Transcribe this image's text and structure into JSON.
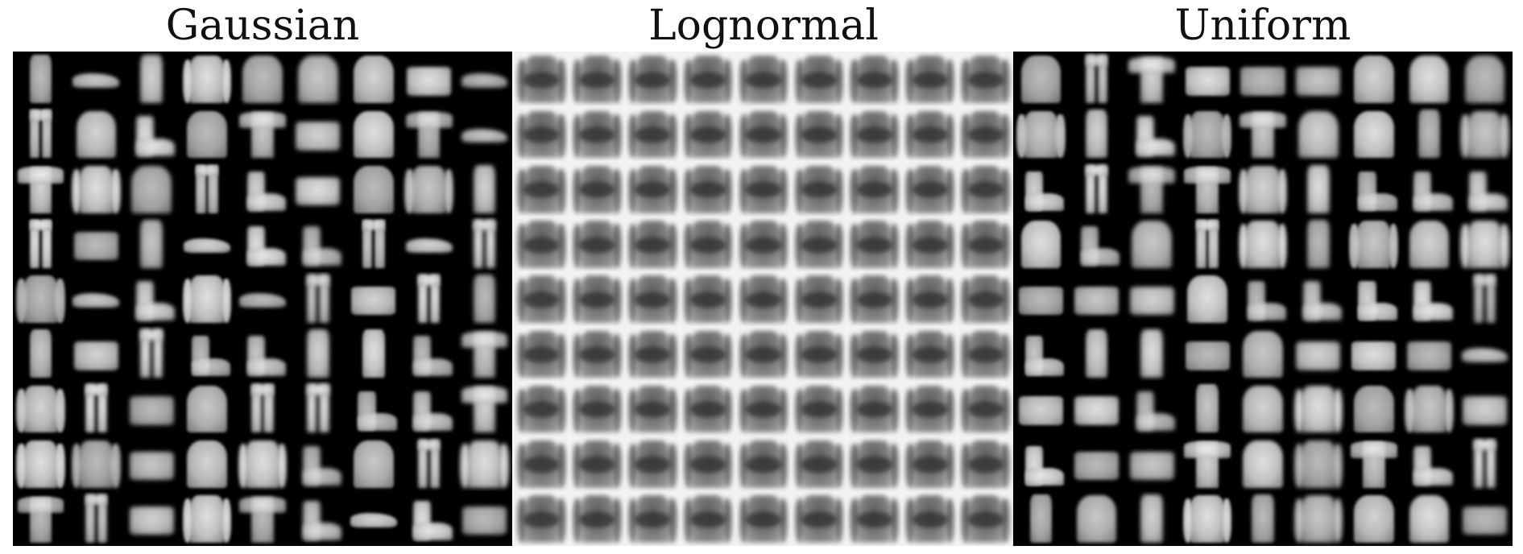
{
  "panels": [
    {
      "title": "Gaussian",
      "theme": "dark",
      "cells": [
        "dress",
        "shoe",
        "dress",
        "pullover",
        "coat",
        "shirt",
        "coat",
        "bag",
        "shoe",
        "trouser",
        "coat",
        "boot",
        "coat",
        "tshirt",
        "bag",
        "coat",
        "tshirt",
        "shoe",
        "tshirt",
        "pullover",
        "coat",
        "trouser",
        "boot",
        "bag",
        "coat",
        "pullover",
        "dress",
        "trouser",
        "bag",
        "dress",
        "shoe",
        "boot",
        "boot",
        "trouser",
        "shoe",
        "trouser",
        "pullover",
        "shoe",
        "boot",
        "pullover",
        "shoe",
        "trouser",
        "bag",
        "trouser",
        "dress",
        "dress",
        "bag",
        "trouser",
        "boot",
        "boot",
        "dress",
        "dress",
        "boot",
        "tshirt",
        "pullover",
        "trouser",
        "bag",
        "coat",
        "trouser",
        "trouser",
        "boot",
        "boot",
        "tshirt",
        "pullover",
        "pullover",
        "bag",
        "coat",
        "pullover",
        "boot",
        "coat",
        "trouser",
        "pullover",
        "tshirt",
        "trouser",
        "bag",
        "pullover",
        "tshirt",
        "boot",
        "shoe",
        "boot",
        "bag"
      ]
    },
    {
      "title": "Lognormal",
      "theme": "light",
      "cells": []
    },
    {
      "title": "Uniform",
      "theme": "dark",
      "cells": [
        "coat",
        "trouser",
        "tshirt",
        "bag",
        "bag",
        "bag",
        "coat",
        "coat",
        "coat",
        "pullover",
        "dress",
        "boot",
        "pullover",
        "tshirt",
        "coat",
        "coat",
        "dress",
        "pullover",
        "boot",
        "trouser",
        "tshirt",
        "tshirt",
        "pullover",
        "dress",
        "boot",
        "boot",
        "boot",
        "coat",
        "boot",
        "coat",
        "trouser",
        "pullover",
        "dress",
        "pullover",
        "coat",
        "pullover",
        "bag",
        "bag",
        "bag",
        "coat",
        "boot",
        "boot",
        "boot",
        "boot",
        "trouser",
        "boot",
        "dress",
        "dress",
        "bag",
        "coat",
        "bag",
        "bag",
        "bag",
        "shoe",
        "bag",
        "bag",
        "boot",
        "dress",
        "coat",
        "pullover",
        "coat",
        "pullover",
        "bag",
        "boot",
        "bag",
        "bag",
        "tshirt",
        "coat",
        "pullover",
        "tshirt",
        "boot",
        "trouser",
        "dress",
        "coat",
        "dress",
        "pullover",
        "dress",
        "pullover",
        "coat",
        "coat",
        "bag"
      ]
    }
  ]
}
